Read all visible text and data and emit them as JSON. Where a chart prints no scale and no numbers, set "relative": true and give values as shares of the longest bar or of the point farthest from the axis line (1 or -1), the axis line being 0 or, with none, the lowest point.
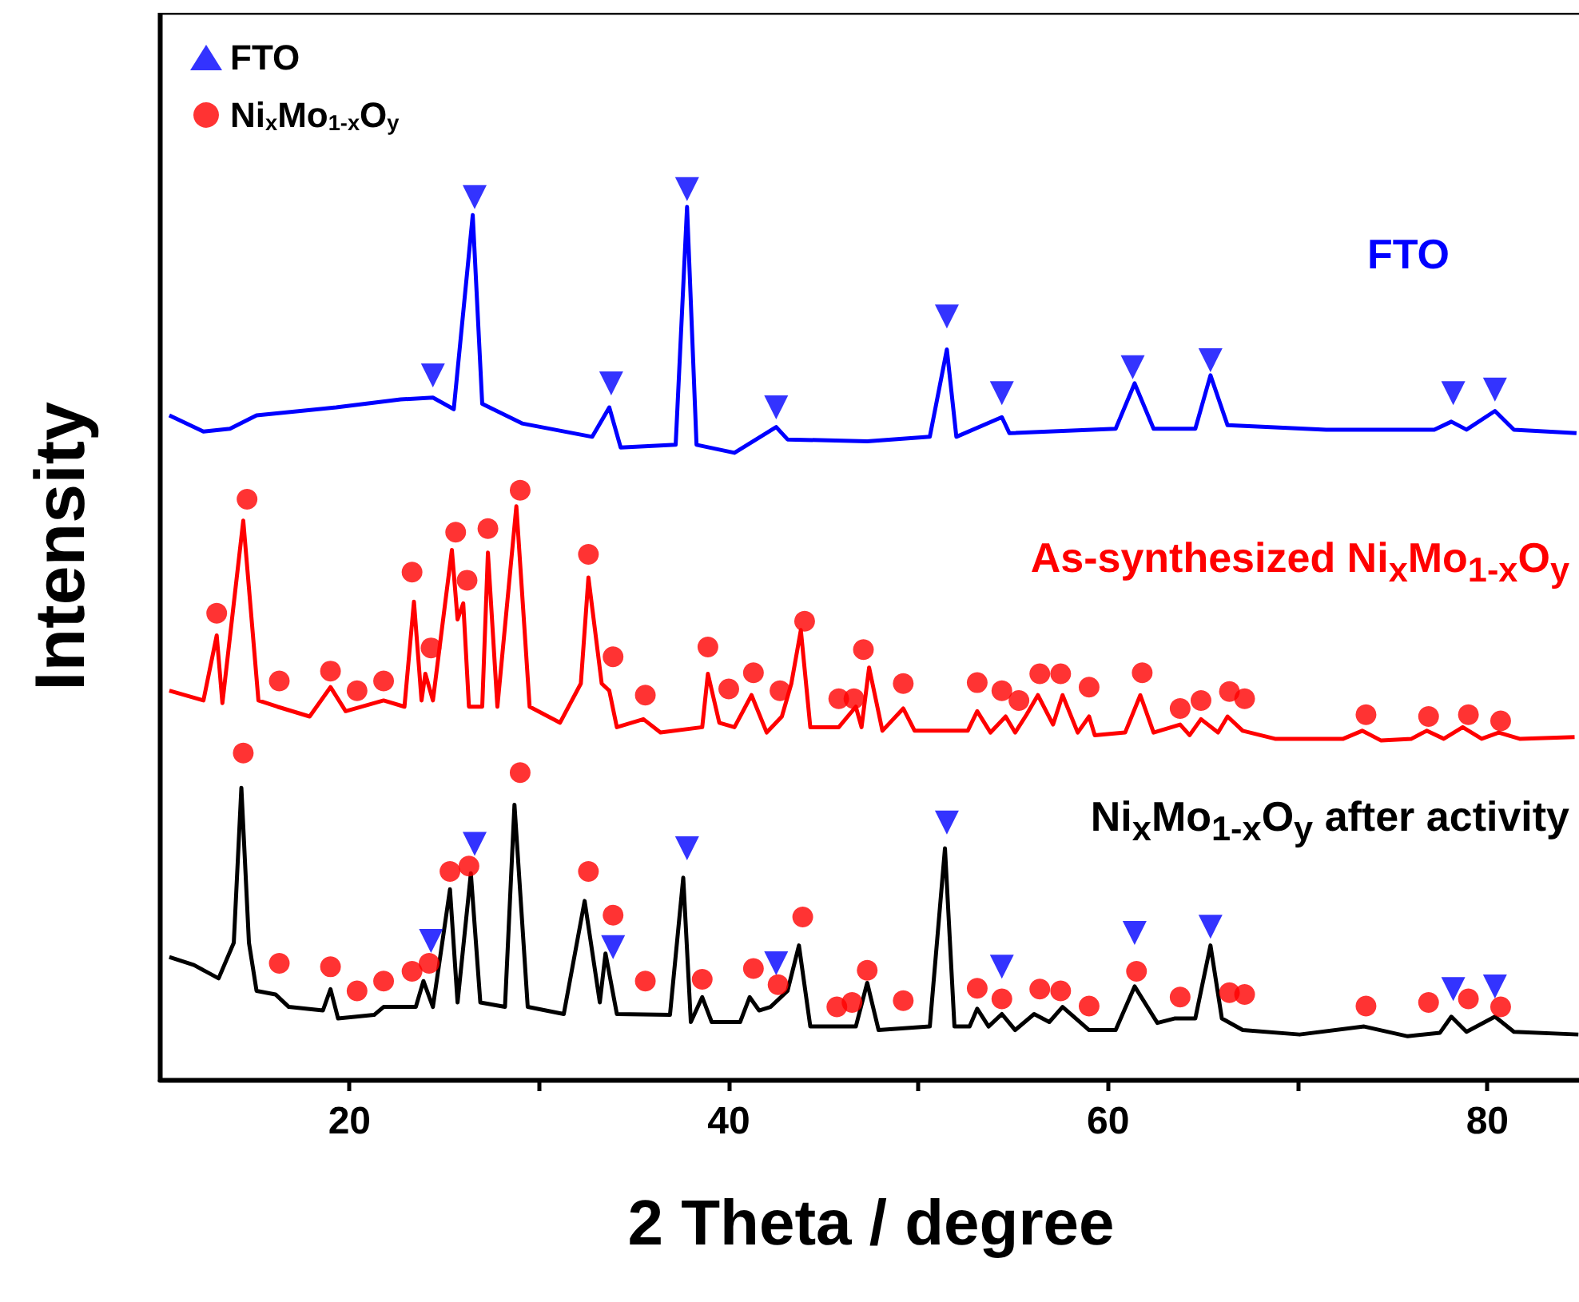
{
  "chart_data": {
    "type": "line",
    "relative": true,
    "xlabel": "2 Theta / degree",
    "ylabel": "Intensity",
    "xlim": [
      10,
      85
    ],
    "xticks": [
      20,
      {
        "value": 30,
        "label": null
      },
      40,
      {
        "value": 50,
        "label": null
      },
      60,
      {
        "value": 70,
        "label": null
      },
      80
    ],
    "legend": "top left",
    "grid": false,
    "marker": "none",
    "annotations": [
      "FTO",
      "As-synthesized Ni$_{x}$Mo$_{1-x}$O$_{y}$",
      "Ni$_{x}$Mo$_{1-x}$O$_{y}$ after activity"
    ],
    "series": [
      {
        "color": "#0000ff",
        "x": [
          10.5,
          12.3,
          13.7,
          15.1,
          19.3,
          22.7,
          24.4,
          25.5,
          26.5,
          27.0,
          29.1,
          32.8,
          33.7,
          34.3,
          37.2,
          37.8,
          38.3,
          40.3,
          42.5,
          43.1,
          47.3,
          50.6,
          51.5,
          52.0,
          54.4,
          54.8,
          60.4,
          61.4,
          62.4,
          64.6,
          65.4,
          66.3,
          71.5,
          77.2,
          78.1,
          78.9,
          80.4,
          81.4,
          84.7
        ],
        "values": [
          0.746,
          0.728,
          0.731,
          0.746,
          0.755,
          0.764,
          0.766,
          0.753,
          0.971,
          0.759,
          0.737,
          0.722,
          0.755,
          0.71,
          0.713,
          0.98,
          0.713,
          0.704,
          0.733,
          0.719,
          0.717,
          0.722,
          0.82,
          0.722,
          0.744,
          0.726,
          0.731,
          0.782,
          0.731,
          0.731,
          0.791,
          0.735,
          0.73,
          0.73,
          0.739,
          0.73,
          0.751,
          0.73,
          0.726
        ]
      },
      {
        "color": "#ff0000",
        "x": [
          10.5,
          12.3,
          13.0,
          13.3,
          14.4,
          15.2,
          16.2,
          17.9,
          19.0,
          19.8,
          21.8,
          22.9,
          23.4,
          23.8,
          24.0,
          24.4,
          25.4,
          25.7,
          26.0,
          26.3,
          27.0,
          27.3,
          27.8,
          28.8,
          29.5,
          31.1,
          32.2,
          32.6,
          33.3,
          33.7,
          34.1,
          35.5,
          36.4,
          38.6,
          38.9,
          39.5,
          40.3,
          41.2,
          42.0,
          42.8,
          43.3,
          43.8,
          44.3,
          45.8,
          46.7,
          47.0,
          47.4,
          48.1,
          49.2,
          49.8,
          52.6,
          53.1,
          53.8,
          54.6,
          55.1,
          55.7,
          56.3,
          57.1,
          57.6,
          58.4,
          59.0,
          59.3,
          60.9,
          61.7,
          62.4,
          63.8,
          64.3,
          64.9,
          65.8,
          66.3,
          67.1,
          68.8,
          72.4,
          73.4,
          74.4,
          76.0,
          76.8,
          77.7,
          78.7,
          79.7,
          80.6,
          81.7,
          84.6
        ],
        "values": [
          0.437,
          0.426,
          0.499,
          0.423,
          0.628,
          0.426,
          0.419,
          0.408,
          0.441,
          0.414,
          0.426,
          0.419,
          0.537,
          0.426,
          0.456,
          0.426,
          0.595,
          0.517,
          0.535,
          0.419,
          0.419,
          0.592,
          0.419,
          0.644,
          0.419,
          0.401,
          0.445,
          0.564,
          0.445,
          0.437,
          0.396,
          0.405,
          0.39,
          0.396,
          0.456,
          0.401,
          0.396,
          0.432,
          0.39,
          0.408,
          0.445,
          0.505,
          0.396,
          0.396,
          0.419,
          0.396,
          0.463,
          0.392,
          0.417,
          0.392,
          0.392,
          0.414,
          0.39,
          0.408,
          0.39,
          0.41,
          0.432,
          0.399,
          0.432,
          0.39,
          0.408,
          0.387,
          0.39,
          0.432,
          0.39,
          0.399,
          0.387,
          0.405,
          0.39,
          0.408,
          0.392,
          0.383,
          0.383,
          0.392,
          0.381,
          0.383,
          0.392,
          0.383,
          0.396,
          0.383,
          0.39,
          0.383,
          0.385
        ]
      },
      {
        "color": "#000000",
        "x": [
          10.5,
          11.8,
          13.1,
          13.9,
          14.3,
          14.7,
          15.1,
          16.1,
          16.8,
          18.6,
          19.0,
          19.4,
          21.3,
          21.8,
          23.5,
          23.9,
          24.4,
          25.3,
          25.7,
          26.4,
          26.9,
          28.2,
          28.7,
          29.4,
          31.3,
          32.4,
          33.2,
          33.5,
          34.1,
          36.9,
          37.6,
          38.0,
          38.6,
          39.1,
          40.6,
          41.1,
          41.6,
          42.2,
          43.1,
          43.7,
          44.3,
          46.4,
          46.7,
          47.3,
          47.9,
          50.6,
          51.4,
          51.9,
          52.7,
          53.1,
          53.7,
          54.4,
          55.1,
          56.1,
          56.9,
          57.6,
          59.0,
          60.4,
          61.4,
          62.6,
          63.5,
          64.6,
          65.4,
          66.0,
          67.1,
          70.1,
          73.5,
          75.8,
          77.5,
          78.1,
          78.9,
          80.4,
          81.4,
          84.8
        ],
        "values": [
          0.138,
          0.129,
          0.114,
          0.154,
          0.328,
          0.154,
          0.1,
          0.096,
          0.082,
          0.078,
          0.102,
          0.069,
          0.073,
          0.082,
          0.082,
          0.111,
          0.082,
          0.214,
          0.087,
          0.232,
          0.087,
          0.082,
          0.309,
          0.082,
          0.074,
          0.201,
          0.087,
          0.142,
          0.074,
          0.073,
          0.227,
          0.065,
          0.093,
          0.065,
          0.065,
          0.093,
          0.078,
          0.082,
          0.1,
          0.151,
          0.06,
          0.06,
          0.06,
          0.109,
          0.056,
          0.06,
          0.26,
          0.06,
          0.06,
          0.08,
          0.06,
          0.074,
          0.056,
          0.074,
          0.065,
          0.082,
          0.056,
          0.056,
          0.105,
          0.064,
          0.069,
          0.069,
          0.151,
          0.069,
          0.056,
          0.051,
          0.06,
          0.049,
          0.053,
          0.071,
          0.054,
          0.071,
          0.054,
          0.051
        ]
      },
      {
        "type": "scatter",
        "name": "FTO",
        "color": "#0000ff",
        "marker": "triangle",
        "x": [
          24.4,
          26.6,
          33.8,
          37.8,
          42.5,
          51.5,
          54.4,
          61.3,
          65.4,
          78.2,
          80.4,
          24.3,
          26.6,
          33.9,
          37.8,
          42.5,
          51.5,
          54.4,
          61.4,
          65.4,
          78.2,
          80.4
        ],
        "values": [
          0.791,
          0.991,
          0.782,
          1.0,
          0.755,
          0.857,
          0.771,
          0.8,
          0.808,
          0.771,
          0.775,
          0.156,
          0.265,
          0.149,
          0.26,
          0.131,
          0.289,
          0.127,
          0.165,
          0.172,
          0.102,
          0.105
        ]
      },
      {
        "type": "scatter",
        "name": "Ni$_{x}$Mo$_{1-x}$O$_{y}$",
        "color": "#ff0000",
        "marker": "circle",
        "x": [
          13.0,
          14.6,
          16.3,
          19.0,
          20.4,
          21.8,
          23.3,
          24.3,
          25.6,
          26.2,
          27.3,
          29.0,
          32.6,
          33.9,
          35.6,
          38.9,
          40.0,
          41.3,
          42.7,
          44.0,
          45.8,
          46.6,
          47.1,
          49.2,
          53.1,
          54.4,
          55.3,
          56.4,
          57.5,
          59.0,
          61.8,
          63.8,
          64.9,
          66.4,
          67.2,
          73.6,
          76.9,
          79.0,
          80.7,
          14.4,
          16.3,
          19.0,
          20.4,
          21.8,
          23.3,
          24.2,
          25.3,
          26.3,
          29.0,
          32.6,
          33.9,
          35.6,
          38.6,
          41.3,
          42.6,
          43.9,
          45.7,
          46.5,
          47.3,
          49.2,
          53.1,
          54.4,
          56.4,
          57.5,
          59.0,
          61.5,
          63.8,
          66.4,
          67.2,
          73.6,
          76.9,
          79.0,
          80.7
        ],
        "values": [
          0.524,
          0.652,
          0.448,
          0.459,
          0.437,
          0.448,
          0.57,
          0.485,
          0.615,
          0.561,
          0.619,
          0.662,
          0.59,
          0.475,
          0.432,
          0.486,
          0.439,
          0.457,
          0.437,
          0.515,
          0.428,
          0.428,
          0.483,
          0.445,
          0.446,
          0.437,
          0.426,
          0.456,
          0.456,
          0.441,
          0.457,
          0.417,
          0.426,
          0.436,
          0.428,
          0.41,
          0.408,
          0.41,
          0.403,
          0.367,
          0.131,
          0.127,
          0.1,
          0.111,
          0.122,
          0.131,
          0.234,
          0.24,
          0.345,
          0.234,
          0.185,
          0.111,
          0.113,
          0.125,
          0.107,
          0.183,
          0.082,
          0.087,
          0.123,
          0.089,
          0.103,
          0.091,
          0.102,
          0.1,
          0.083,
          0.122,
          0.093,
          0.098,
          0.096,
          0.083,
          0.087,
          0.091,
          0.082
        ]
      }
    ]
  }
}
